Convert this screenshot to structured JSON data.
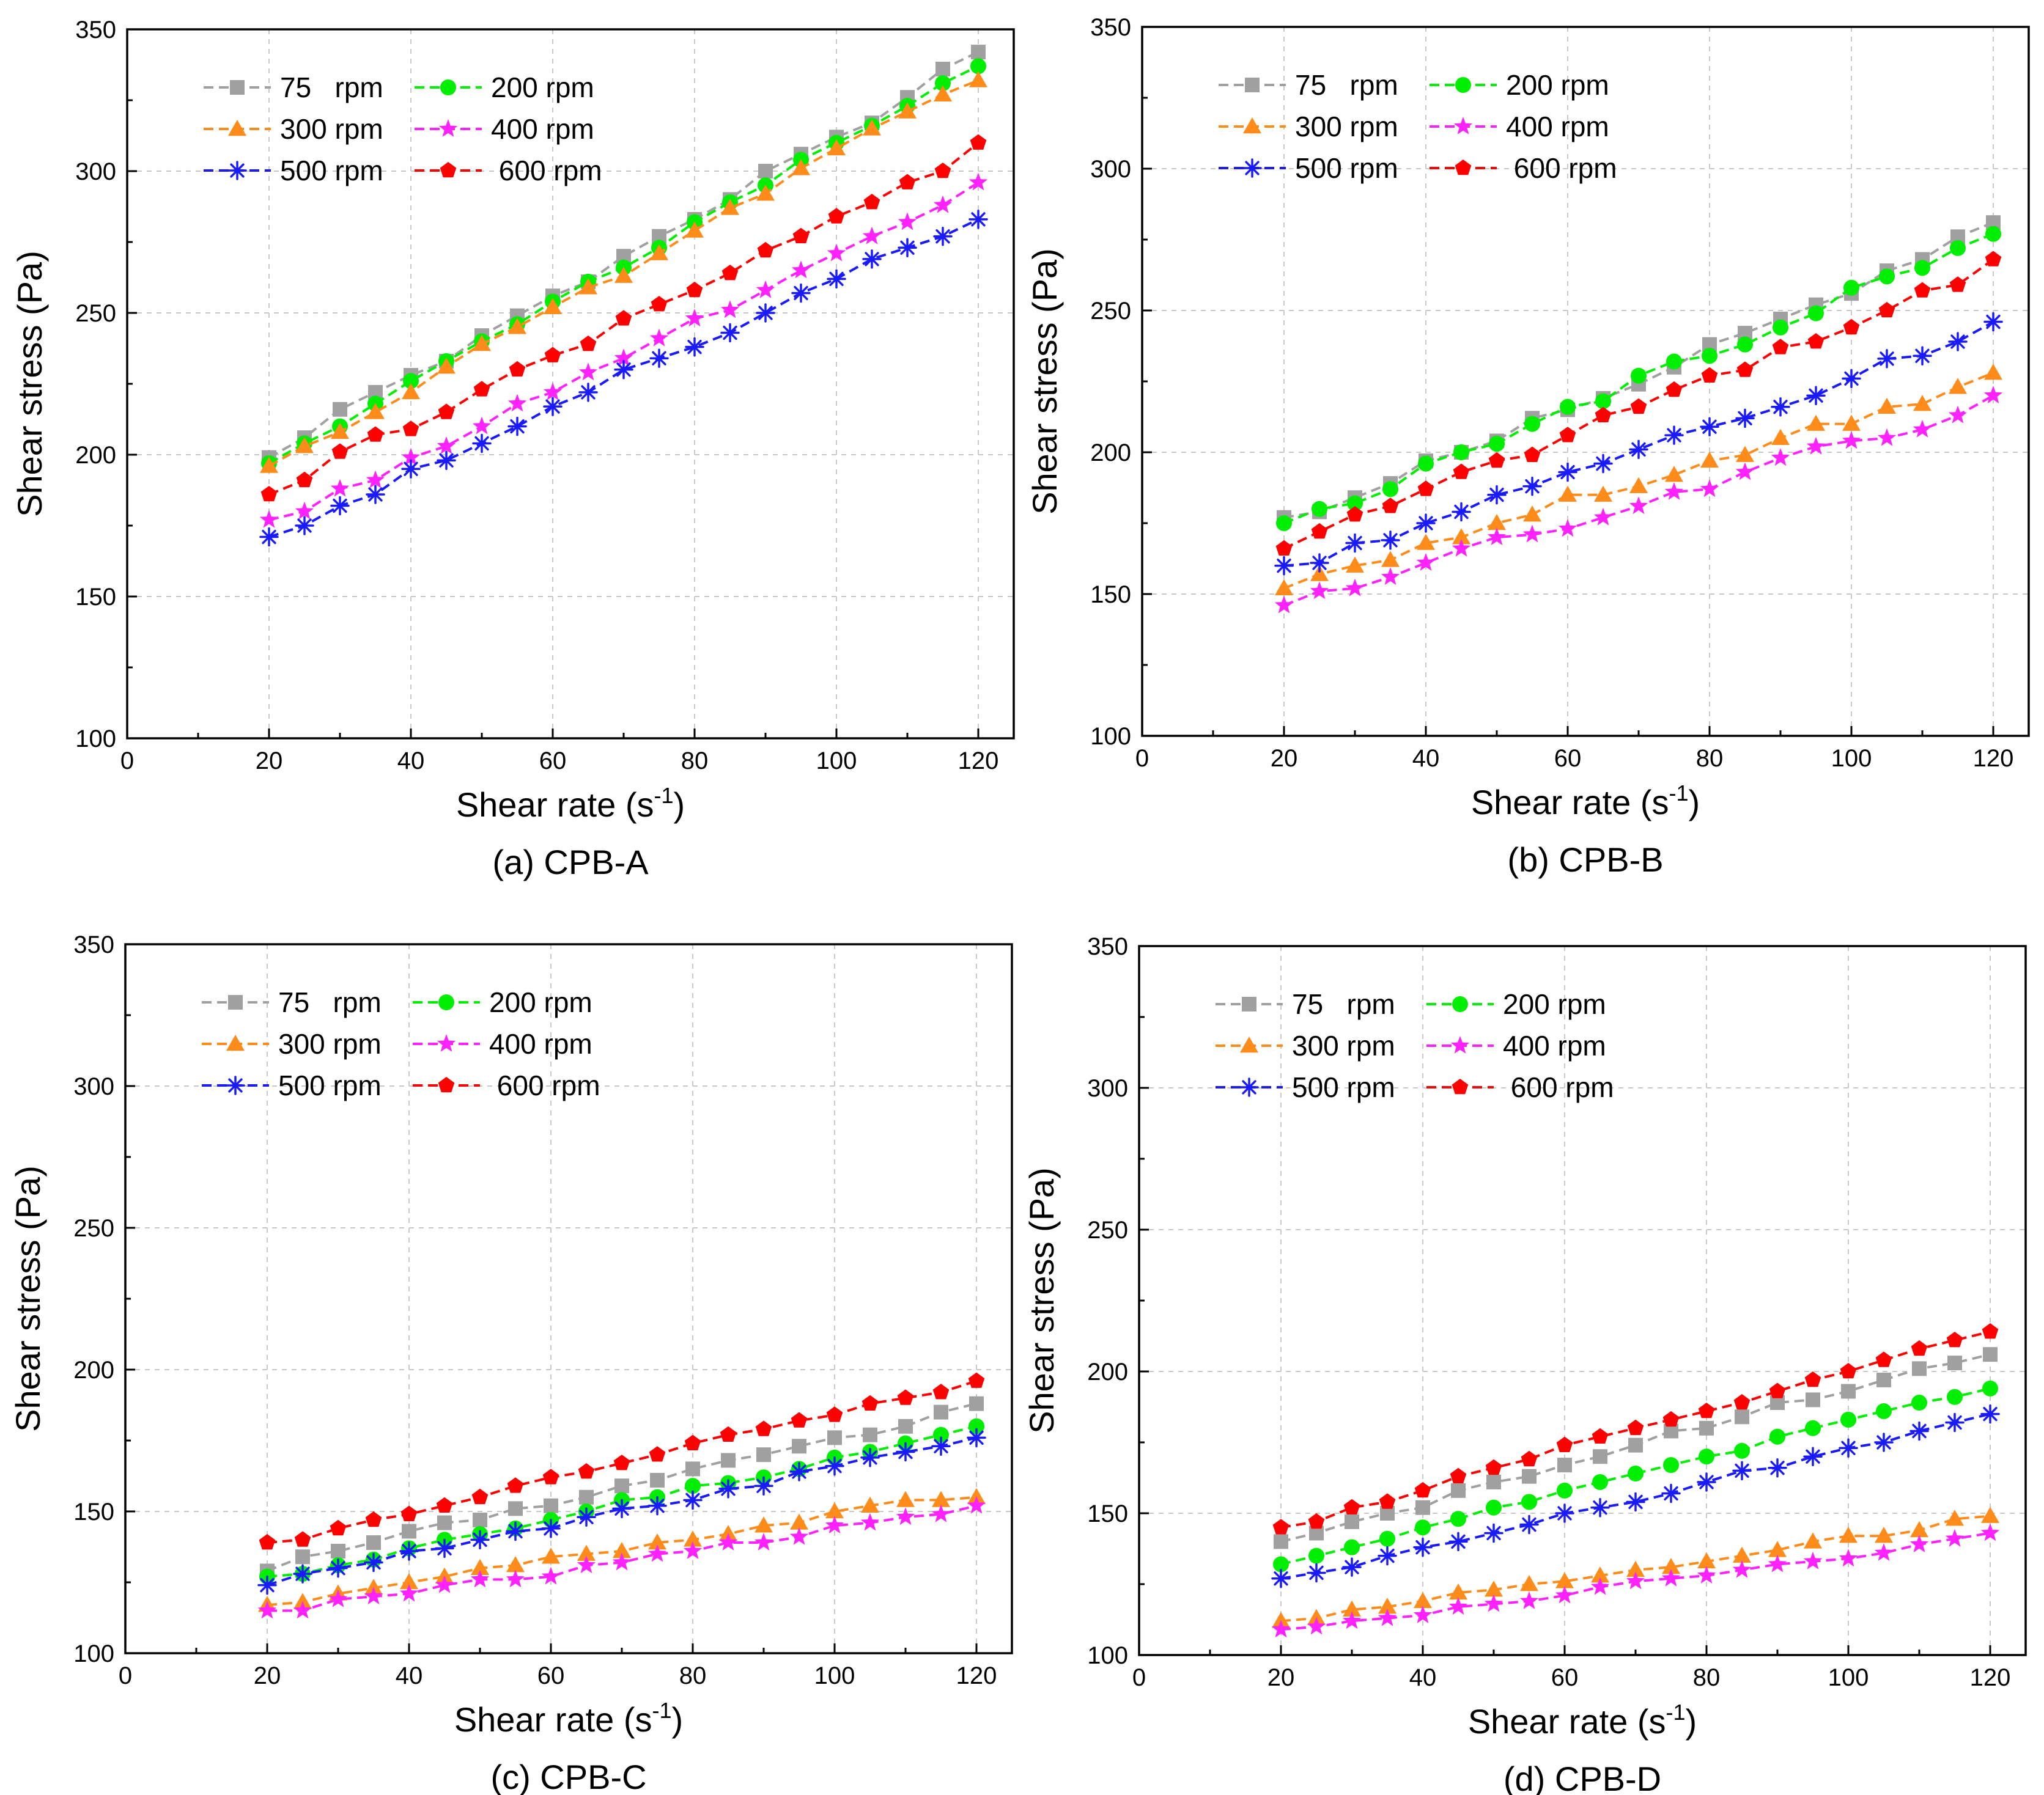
{
  "chart_data": [
    {
      "type": "line",
      "caption": "(a) CPB-A",
      "xlabel": "Shear rate (s",
      "xlabel_sup": "-1",
      "xlabel_end": ")",
      "ylabel": "Shear stress (Pa)",
      "xlim": [
        0,
        125
      ],
      "ylim": [
        100,
        350
      ],
      "xticks": [
        "0",
        "20",
        "40",
        "60",
        "80",
        "100",
        "120"
      ],
      "yticks": [
        "100",
        "150",
        "200",
        "250",
        "300",
        "350"
      ],
      "grid": true,
      "legend_position": "top-left",
      "x": [
        20,
        25,
        30,
        35,
        40,
        45,
        50,
        55,
        60,
        65,
        70,
        75,
        80,
        85,
        90,
        95,
        100,
        105,
        110,
        115,
        120
      ],
      "series": [
        {
          "name": "75   rpm",
          "color": "#a0a0a0",
          "marker": "square",
          "values": [
            199,
            206,
            216,
            222,
            228,
            233,
            242,
            249,
            256,
            261,
            270,
            277,
            283,
            290,
            300,
            306,
            312,
            317,
            326,
            336,
            342
          ]
        },
        {
          "name": "200 rpm",
          "color": "#00ee00",
          "marker": "circle",
          "values": [
            197,
            204,
            210,
            218,
            226,
            233,
            240,
            246,
            254,
            261,
            266,
            273,
            282,
            289,
            295,
            304,
            310,
            316,
            323,
            331,
            337
          ]
        },
        {
          "name": "300 rpm",
          "color": "#ff8c1a",
          "marker": "triangle",
          "values": [
            196,
            203,
            208,
            215,
            222,
            231,
            239,
            245,
            252,
            259,
            263,
            271,
            279,
            287,
            292,
            301,
            308,
            315,
            321,
            327,
            332
          ]
        },
        {
          "name": "400 rpm",
          "color": "#ff22ff",
          "marker": "star",
          "values": [
            177,
            180,
            188,
            191,
            199,
            203,
            210,
            218,
            222,
            229,
            234,
            241,
            248,
            251,
            258,
            265,
            271,
            277,
            282,
            288,
            296
          ]
        },
        {
          "name": "500 rpm",
          "color": "#1a1aff",
          "marker": "asterisk",
          "values": [
            171,
            175,
            182,
            186,
            195,
            198,
            204,
            210,
            217,
            222,
            230,
            234,
            238,
            243,
            250,
            257,
            262,
            269,
            273,
            277,
            283
          ]
        },
        {
          "name": " 600 rpm",
          "color": "#ff0000",
          "marker": "pentagon",
          "values": [
            186,
            191,
            201,
            207,
            209,
            215,
            223,
            230,
            235,
            239,
            248,
            253,
            258,
            264,
            272,
            277,
            284,
            289,
            296,
            300,
            310
          ]
        }
      ]
    },
    {
      "type": "line",
      "caption": "(b) CPB-B",
      "xlabel": "Shear rate (s",
      "xlabel_sup": "-1",
      "xlabel_end": ")",
      "ylabel": "Shear stress (Pa)",
      "xlim": [
        0,
        125
      ],
      "ylim": [
        100,
        350
      ],
      "xticks": [
        "0",
        "20",
        "40",
        "60",
        "80",
        "100",
        "120"
      ],
      "yticks": [
        "100",
        "150",
        "200",
        "250",
        "300",
        "350"
      ],
      "grid": true,
      "legend_position": "top-left",
      "x": [
        20,
        25,
        30,
        35,
        40,
        45,
        50,
        55,
        60,
        65,
        70,
        75,
        80,
        85,
        90,
        95,
        100,
        105,
        110,
        115,
        120
      ],
      "series": [
        {
          "name": "75   rpm",
          "color": "#a0a0a0",
          "marker": "square",
          "values": [
            177,
            179,
            184,
            189,
            197,
            200,
            204,
            212,
            215,
            219,
            224,
            230,
            238,
            242,
            247,
            252,
            256,
            264,
            268,
            276,
            281
          ]
        },
        {
          "name": "200 rpm",
          "color": "#00ee00",
          "marker": "circle",
          "values": [
            175,
            180,
            182,
            187,
            196,
            200,
            203,
            210,
            216,
            218,
            227,
            232,
            234,
            238,
            244,
            249,
            258,
            262,
            265,
            272,
            277
          ]
        },
        {
          "name": "300 rpm",
          "color": "#ff8c1a",
          "marker": "triangle",
          "values": [
            152,
            157,
            160,
            162,
            168,
            170,
            175,
            178,
            185,
            185,
            188,
            192,
            197,
            199,
            205,
            210,
            210,
            216,
            217,
            223,
            228
          ]
        },
        {
          "name": "400 rpm",
          "color": "#ff22ff",
          "marker": "star",
          "values": [
            146,
            151,
            152,
            156,
            161,
            166,
            170,
            171,
            173,
            177,
            181,
            186,
            187,
            193,
            198,
            202,
            204,
            205,
            208,
            213,
            220
          ]
        },
        {
          "name": "500 rpm",
          "color": "#1a1aff",
          "marker": "asterisk",
          "values": [
            160,
            161,
            168,
            169,
            175,
            179,
            185,
            188,
            193,
            196,
            201,
            206,
            209,
            212,
            216,
            220,
            226,
            233,
            234,
            239,
            246
          ]
        },
        {
          "name": " 600 rpm",
          "color": "#ff0000",
          "marker": "pentagon",
          "values": [
            166,
            172,
            178,
            181,
            187,
            193,
            197,
            199,
            206,
            213,
            216,
            222,
            227,
            229,
            237,
            239,
            244,
            250,
            257,
            259,
            268
          ]
        }
      ]
    },
    {
      "type": "line",
      "caption": "(c) CPB-C",
      "xlabel": "Shear rate (s",
      "xlabel_sup": "-1",
      "xlabel_end": ")",
      "ylabel": "Shear stress (Pa)",
      "xlim": [
        0,
        125
      ],
      "ylim": [
        100,
        350
      ],
      "xticks": [
        "0",
        "20",
        "40",
        "60",
        "80",
        "100",
        "120"
      ],
      "yticks": [
        "100",
        "150",
        "200",
        "250",
        "300",
        "350"
      ],
      "grid": true,
      "legend_position": "top-left",
      "x": [
        20,
        25,
        30,
        35,
        40,
        45,
        50,
        55,
        60,
        65,
        70,
        75,
        80,
        85,
        90,
        95,
        100,
        105,
        110,
        115,
        120
      ],
      "series": [
        {
          "name": "75   rpm",
          "color": "#a0a0a0",
          "marker": "square",
          "values": [
            129,
            134,
            136,
            139,
            143,
            146,
            147,
            151,
            152,
            155,
            159,
            161,
            165,
            168,
            170,
            173,
            176,
            177,
            180,
            185,
            188
          ]
        },
        {
          "name": "200 rpm",
          "color": "#00ee00",
          "marker": "circle",
          "values": [
            127,
            128,
            131,
            133,
            137,
            140,
            142,
            144,
            147,
            150,
            154,
            155,
            159,
            160,
            162,
            165,
            169,
            171,
            174,
            177,
            180
          ]
        },
        {
          "name": "300 rpm",
          "color": "#ff8c1a",
          "marker": "triangle",
          "values": [
            117,
            118,
            121,
            123,
            125,
            127,
            130,
            131,
            134,
            135,
            136,
            139,
            140,
            142,
            145,
            146,
            150,
            152,
            154,
            154,
            155
          ]
        },
        {
          "name": "400 rpm",
          "color": "#ff22ff",
          "marker": "star",
          "values": [
            115,
            115,
            119,
            120,
            121,
            124,
            126,
            126,
            127,
            131,
            132,
            135,
            136,
            139,
            139,
            141,
            145,
            146,
            148,
            149,
            152
          ]
        },
        {
          "name": "500 rpm",
          "color": "#1a1aff",
          "marker": "asterisk",
          "values": [
            124,
            128,
            130,
            132,
            136,
            137,
            140,
            143,
            144,
            148,
            151,
            152,
            154,
            158,
            159,
            164,
            166,
            169,
            171,
            173,
            176
          ]
        },
        {
          "name": " 600 rpm",
          "color": "#ff0000",
          "marker": "pentagon",
          "values": [
            139,
            140,
            144,
            147,
            149,
            152,
            155,
            159,
            162,
            164,
            167,
            170,
            174,
            177,
            179,
            182,
            184,
            188,
            190,
            192,
            196
          ]
        }
      ]
    },
    {
      "type": "line",
      "caption": "(d) CPB-D",
      "xlabel": "Shear rate (s",
      "xlabel_sup": "-1",
      "xlabel_end": ")",
      "ylabel": "Shear stress (Pa)",
      "xlim": [
        0,
        125
      ],
      "ylim": [
        100,
        350
      ],
      "xticks": [
        "0",
        "20",
        "40",
        "60",
        "80",
        "100",
        "120"
      ],
      "yticks": [
        "100",
        "150",
        "200",
        "250",
        "300",
        "350"
      ],
      "grid": true,
      "legend_position": "top-left",
      "x": [
        20,
        25,
        30,
        35,
        40,
        45,
        50,
        55,
        60,
        65,
        70,
        75,
        80,
        85,
        90,
        95,
        100,
        105,
        110,
        115,
        120
      ],
      "series": [
        {
          "name": "75   rpm",
          "color": "#a0a0a0",
          "marker": "square",
          "values": [
            140,
            143,
            147,
            150,
            152,
            158,
            161,
            163,
            167,
            170,
            174,
            179,
            180,
            184,
            189,
            190,
            193,
            197,
            201,
            203,
            206
          ]
        },
        {
          "name": "200 rpm",
          "color": "#00ee00",
          "marker": "circle",
          "values": [
            132,
            135,
            138,
            141,
            145,
            148,
            152,
            154,
            158,
            161,
            164,
            167,
            170,
            172,
            177,
            180,
            183,
            186,
            189,
            191,
            194
          ]
        },
        {
          "name": "300 rpm",
          "color": "#ff8c1a",
          "marker": "triangle",
          "values": [
            112,
            113,
            116,
            117,
            119,
            122,
            123,
            125,
            126,
            128,
            130,
            131,
            133,
            135,
            137,
            140,
            142,
            142,
            144,
            148,
            149
          ]
        },
        {
          "name": "400 rpm",
          "color": "#ff22ff",
          "marker": "star",
          "values": [
            109,
            110,
            112,
            113,
            114,
            117,
            118,
            119,
            121,
            124,
            126,
            127,
            128,
            130,
            132,
            133,
            134,
            136,
            139,
            141,
            143
          ]
        },
        {
          "name": "500 rpm",
          "color": "#1a1aff",
          "marker": "asterisk",
          "values": [
            127,
            129,
            131,
            135,
            138,
            140,
            143,
            146,
            150,
            152,
            154,
            157,
            161,
            165,
            166,
            170,
            173,
            175,
            179,
            182,
            185
          ]
        },
        {
          "name": " 600 rpm",
          "color": "#ff0000",
          "marker": "pentagon",
          "values": [
            145,
            147,
            152,
            154,
            158,
            163,
            166,
            169,
            174,
            177,
            180,
            183,
            186,
            189,
            193,
            197,
            200,
            204,
            208,
            211,
            214
          ]
        }
      ]
    }
  ]
}
